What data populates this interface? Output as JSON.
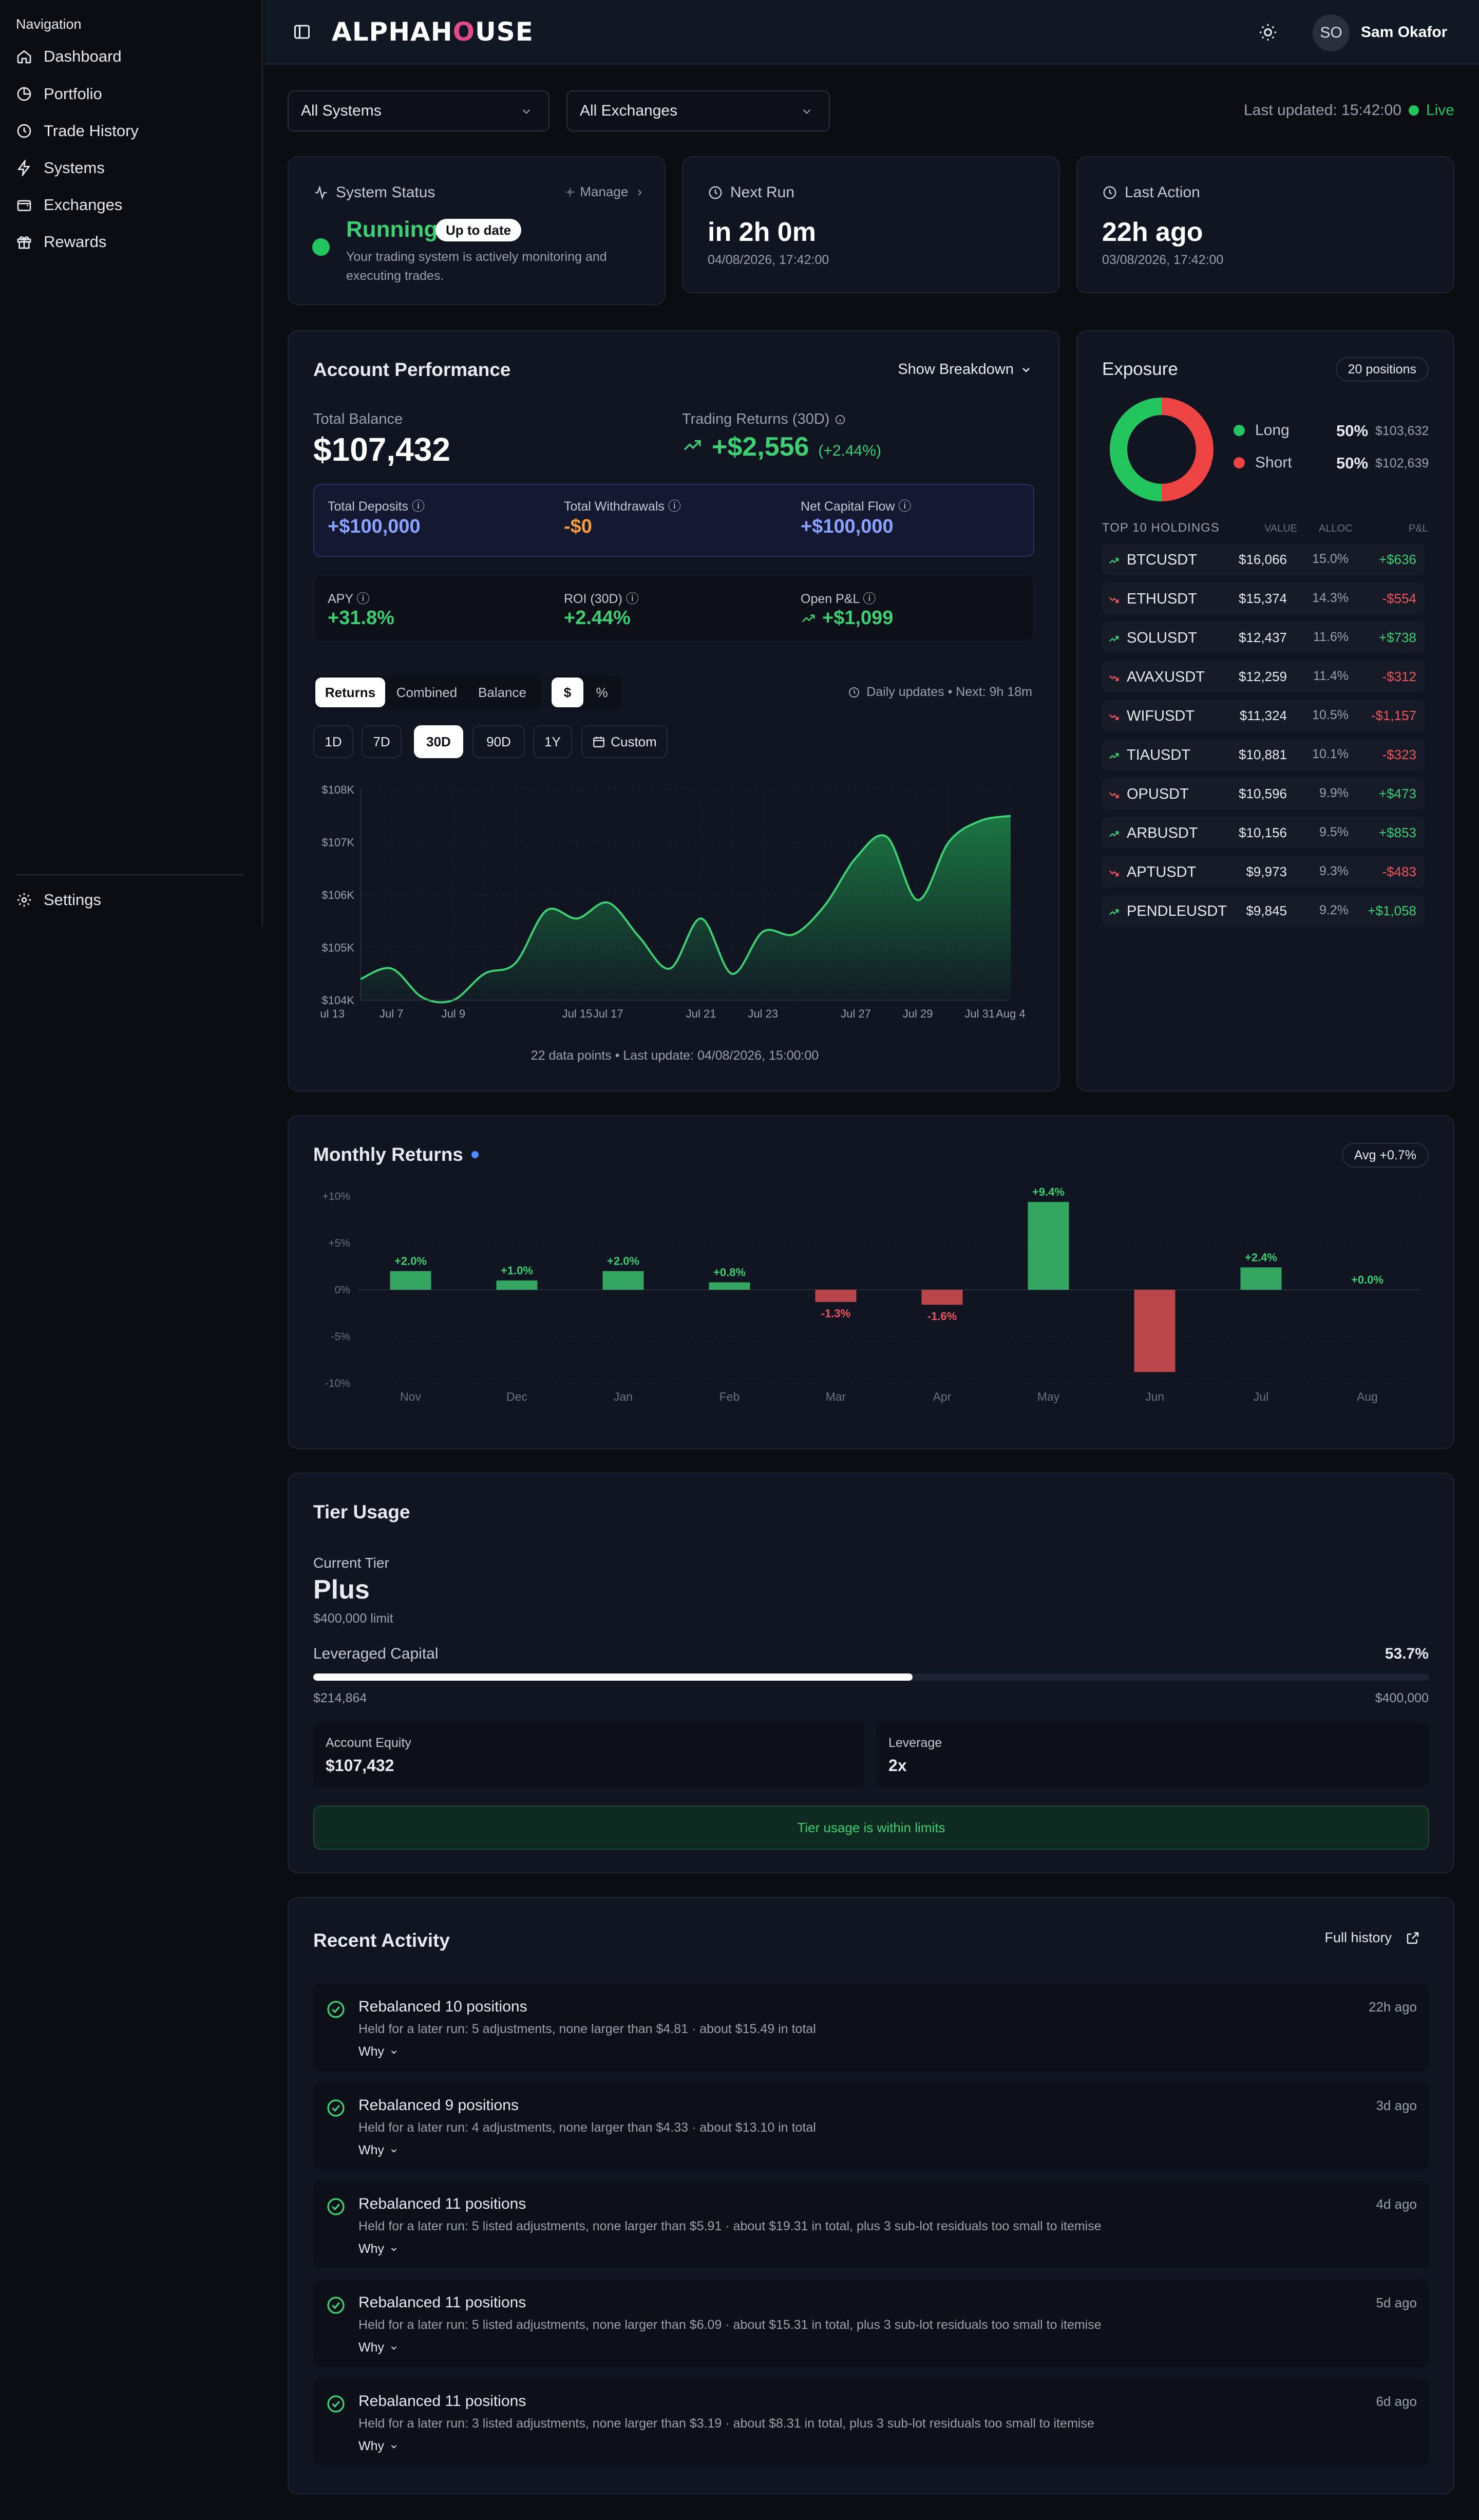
{
  "sidebar": {
    "title": "Navigation",
    "items": [
      {
        "label": "Dashboard",
        "icon": "home-icon"
      },
      {
        "label": "Portfolio",
        "icon": "pie-icon"
      },
      {
        "label": "Trade History",
        "icon": "history-icon"
      },
      {
        "label": "Systems",
        "icon": "bolt-icon"
      },
      {
        "label": "Exchanges",
        "icon": "wallet-icon"
      },
      {
        "label": "Rewards",
        "icon": "gift-icon"
      }
    ],
    "settings_label": "Settings"
  },
  "topbar": {
    "logo_a": "ALPHAH",
    "logo_o": "O",
    "logo_b": "USE",
    "avatar_initials": "SO",
    "username": "Sam Okafor"
  },
  "filters": {
    "systems": "All Systems",
    "exchanges": "All Exchanges",
    "last_updated": "Last updated: 15:42:00",
    "live": "Live"
  },
  "status": {
    "title": "System Status",
    "manage": "Manage",
    "state": "Running",
    "badge": "Up to date",
    "desc_1": "Your trading system is actively monitoring and",
    "desc_2": "executing trades."
  },
  "next_run": {
    "title": "Next Run",
    "value": "in 2h 0m",
    "date": "04/08/2026, 17:42:00"
  },
  "last_action": {
    "title": "Last Action",
    "value": "22h ago",
    "date": "03/08/2026, 17:42:00"
  },
  "performance": {
    "title": "Account Performance",
    "breakdown": "Show Breakdown",
    "total_balance_label": "Total Balance",
    "total_balance": "$107,432",
    "trading_returns_label": "Trading Returns (30D)",
    "trading_returns": "+$2,556",
    "trading_returns_pct": "(+2.44%)",
    "deposits_label": "Total Deposits",
    "deposits": "+$100,000",
    "withdrawals_label": "Total Withdrawals",
    "withdrawals": "-$0",
    "net_flow_label": "Net Capital Flow",
    "net_flow": "+$100,000",
    "apy_label": "APY",
    "apy": "+31.8%",
    "roi_label": "ROI (30D)",
    "roi": "+2.44%",
    "pnl_label": "Open P&L",
    "pnl": "+$1,099",
    "tabs": [
      "Returns",
      "Combined",
      "Balance"
    ],
    "units": [
      "$",
      "%"
    ],
    "updates": "Daily updates • Next: 9h 18m",
    "ranges": [
      "1D",
      "7D",
      "30D",
      "90D",
      "1Y"
    ],
    "custom": "Custom",
    "footer": "22 data points • Last update: 04/08/2026, 15:00:00"
  },
  "exposure": {
    "title": "Exposure",
    "positions": "20 positions",
    "long_label": "Long",
    "long_pct": "50%",
    "long_val": "$103,632",
    "long_share": 0.5,
    "short_label": "Short",
    "short_pct": "50%",
    "short_val": "$102,639",
    "holdings_title": "TOP 10 HOLDINGS",
    "cols": [
      "VALUE",
      "ALLOC",
      "P&L"
    ],
    "holdings": [
      {
        "sym": "BTCUSDT",
        "value": "$16,066",
        "alloc": "15.0%",
        "pnl": "+$636",
        "up": true
      },
      {
        "sym": "ETHUSDT",
        "value": "$15,374",
        "alloc": "14.3%",
        "pnl": "-$554",
        "up": false
      },
      {
        "sym": "SOLUSDT",
        "value": "$12,437",
        "alloc": "11.6%",
        "pnl": "+$738",
        "up": true
      },
      {
        "sym": "AVAXUSDT",
        "value": "$12,259",
        "alloc": "11.4%",
        "pnl": "-$312",
        "up": false
      },
      {
        "sym": "WIFUSDT",
        "value": "$11,324",
        "alloc": "10.5%",
        "pnl": "-$1,157",
        "up": false
      },
      {
        "sym": "TIAUSDT",
        "value": "$10,881",
        "alloc": "10.1%",
        "pnl": "-$323",
        "up": true
      },
      {
        "sym": "OPUSDT",
        "value": "$10,596",
        "alloc": "9.9%",
        "pnl": "+$473",
        "up": false
      },
      {
        "sym": "ARBUSDT",
        "value": "$10,156",
        "alloc": "9.5%",
        "pnl": "+$853",
        "up": true
      },
      {
        "sym": "APTUSDT",
        "value": "$9,973",
        "alloc": "9.3%",
        "pnl": "-$483",
        "up": false
      },
      {
        "sym": "PENDLEUSDT",
        "value": "$9,845",
        "alloc": "9.2%",
        "pnl": "+$1,058",
        "up": true
      }
    ]
  },
  "monthly": {
    "title": "Monthly Returns",
    "avg": "Avg +0.7%"
  },
  "tier": {
    "title": "Tier Usage",
    "current_label": "Current Tier",
    "current": "Plus",
    "limit": "$400,000 limit",
    "leveraged_label": "Leveraged Capital",
    "leveraged_pct": "53.7%",
    "usage_fraction": 0.537,
    "used": "$214,864",
    "max": "$400,000",
    "equity_label": "Account Equity",
    "equity": "$107,432",
    "leverage_label": "Leverage",
    "leverage": "2x",
    "status": "Tier usage is within limits"
  },
  "activity": {
    "title": "Recent Activity",
    "full_history": "Full history",
    "why": "Why",
    "items": [
      {
        "title": "Rebalanced 10 positions",
        "desc": "Held for a later run: 5 adjustments, none larger than $4.81 · about $15.49 in total",
        "ago": "22h ago"
      },
      {
        "title": "Rebalanced 9 positions",
        "desc": "Held for a later run: 4 adjustments, none larger than $4.33 · about $13.10 in total",
        "ago": "3d ago"
      },
      {
        "title": "Rebalanced 11 positions",
        "desc": "Held for a later run: 5 listed adjustments, none larger than $5.91 · about $19.31 in total, plus 3 sub-lot residuals too small to itemise",
        "ago": "4d ago"
      },
      {
        "title": "Rebalanced 11 positions",
        "desc": "Held for a later run: 5 listed adjustments, none larger than $6.09 · about $15.31 in total, plus 3 sub-lot residuals too small to itemise",
        "ago": "5d ago"
      },
      {
        "title": "Rebalanced 11 positions",
        "desc": "Held for a later run: 3 listed adjustments, none larger than $3.19 · about $8.31 in total, plus 3 sub-lot residuals too small to itemise",
        "ago": "6d ago"
      }
    ]
  },
  "colors": {
    "accent_green": "#3ecf73",
    "negative_red": "#f0575c",
    "orange": "#f59e3b",
    "blue": "#8aa3ff"
  },
  "chart_data": [
    {
      "type": "area",
      "x": [
        "Jul 6",
        "Jul 7",
        "Jul 8",
        "Jul 9",
        "Jul 10",
        "Jul 12",
        "Jul 14",
        "Jul 15",
        "Jul 17",
        "Jul 19",
        "Jul 20",
        "Jul 21",
        "Jul 22",
        "Jul 23",
        "Jul 24",
        "Jul 26",
        "Jul 27",
        "Jul 28",
        "Jul 29",
        "Jul 30",
        "Jul 31",
        "Aug 4"
      ],
      "values": [
        104400,
        104600,
        104050,
        104000,
        104500,
        104700,
        105700,
        105550,
        105850,
        105200,
        104600,
        105550,
        104500,
        105300,
        105250,
        105800,
        106700,
        107100,
        105900,
        107000,
        107400,
        107500
      ],
      "xticks": [
        "Jul 7",
        "Jul 9",
        "Jul 13",
        "Jul 15",
        "Jul 17",
        "Jul 21",
        "Jul 23",
        "Jul 27",
        "Jul 29",
        "Jul 31",
        "Aug 4"
      ],
      "yticks": [
        "$104K",
        "$105K",
        "$106K",
        "$107K",
        "$108K"
      ],
      "ylim": [
        104000,
        108000
      ]
    },
    {
      "type": "bar",
      "categories": [
        "Nov",
        "Dec",
        "Jan",
        "Feb",
        "Mar",
        "Apr",
        "May",
        "Jun",
        "Jul",
        "Aug"
      ],
      "values": [
        2.0,
        1.0,
        2.0,
        0.8,
        -1.3,
        -1.6,
        9.4,
        -8.8,
        2.4,
        0.0
      ],
      "labels": [
        "+2.0%",
        "+1.0%",
        "+2.0%",
        "+0.8%",
        "-1.3%",
        "-1.6%",
        "+9.4%",
        "",
        "+2.4%",
        "+0.0%"
      ],
      "yticks": [
        "+10%",
        "+5%",
        "0%",
        "-5%",
        "-10%"
      ],
      "ylim": [
        -10,
        10
      ]
    }
  ]
}
